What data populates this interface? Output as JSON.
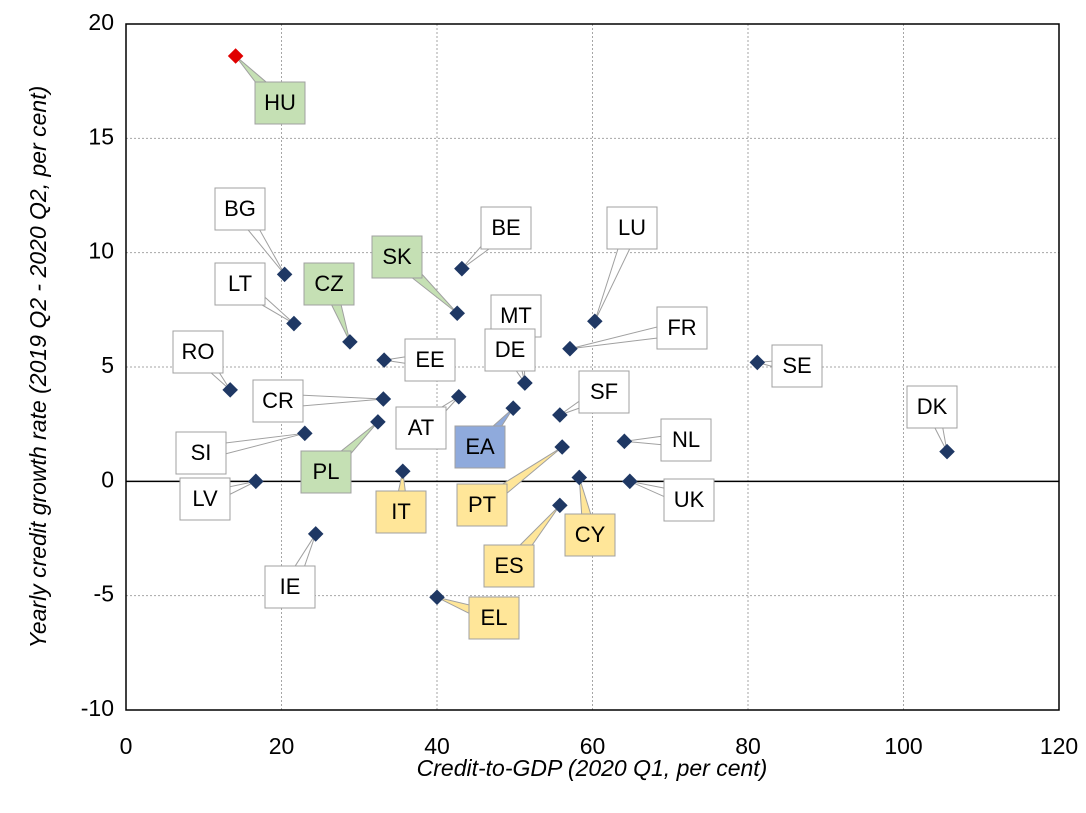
{
  "chart_data": {
    "type": "scatter",
    "x_label": "Credit-to-GDP (2020 Q1, per cent)",
    "y_label": "Yearly credit growth rate (2019 Q2 - 2020 Q2, per cent)",
    "labels": [
      "HU",
      "BG",
      "LT",
      "CZ",
      "RO",
      "EE",
      "CR",
      "SI",
      "PL",
      "LV",
      "IE",
      "IT",
      "AT",
      "SK",
      "BE",
      "EL",
      "MT",
      "DE",
      "EA",
      "PT",
      "ES",
      "CY",
      "SF",
      "FR",
      "LU",
      "NL",
      "UK",
      "SE",
      "DK"
    ],
    "x": [
      14.1,
      20.4,
      21.6,
      28.8,
      13.4,
      33.2,
      33.1,
      23.0,
      32.4,
      16.7,
      24.4,
      35.6,
      42.8,
      42.6,
      43.2,
      40.0,
      51.3,
      51.3,
      49.8,
      56.1,
      55.8,
      58.3,
      55.8,
      57.1,
      60.3,
      64.1,
      64.8,
      81.2,
      105.6
    ],
    "values": [
      18.6,
      9.05,
      6.9,
      6.1,
      4.0,
      5.3,
      3.6,
      2.1,
      2.6,
      0.0,
      -2.3,
      0.44,
      3.7,
      7.35,
      9.3,
      -5.07,
      4.3,
      4.3,
      3.2,
      1.5,
      -1.05,
      0.17,
      2.9,
      5.8,
      7.0,
      1.75,
      0.0,
      5.2,
      1.3
    ],
    "marker_colors": [
      "#e00000",
      "#1f3864",
      "#1f3864",
      "#1f3864",
      "#1f3864",
      "#1f3864",
      "#1f3864",
      "#1f3864",
      "#1f3864",
      "#1f3864",
      "#1f3864",
      "#1f3864",
      "#1f3864",
      "#1f3864",
      "#1f3864",
      "#1f3864",
      "#1f3864",
      "#1f3864",
      "#1f3864",
      "#1f3864",
      "#1f3864",
      "#1f3864",
      "#1f3864",
      "#1f3864",
      "#1f3864",
      "#1f3864",
      "#1f3864",
      "#1f3864",
      "#1f3864"
    ],
    "label_colors": [
      "#c5e0b4",
      "#ffffff",
      "#ffffff",
      "#c5e0b4",
      "#ffffff",
      "#ffffff",
      "#ffffff",
      "#ffffff",
      "#c5e0b4",
      "#ffffff",
      "#ffffff",
      "#ffe699",
      "#ffffff",
      "#c5e0b4",
      "#ffffff",
      "#ffe699",
      "#ffffff",
      "#ffffff",
      "#8faadc",
      "#ffe699",
      "#ffe699",
      "#ffe699",
      "#ffffff",
      "#ffffff",
      "#ffffff",
      "#ffffff",
      "#ffffff",
      "#ffffff",
      "#ffffff"
    ],
    "xlim": [
      0,
      120
    ],
    "xticks": [
      0,
      20,
      40,
      60,
      80,
      100,
      120
    ],
    "ylim": [
      -10,
      20
    ],
    "yticks": [
      -10,
      -5,
      0,
      5,
      10,
      15,
      20
    ],
    "grid": true
  }
}
